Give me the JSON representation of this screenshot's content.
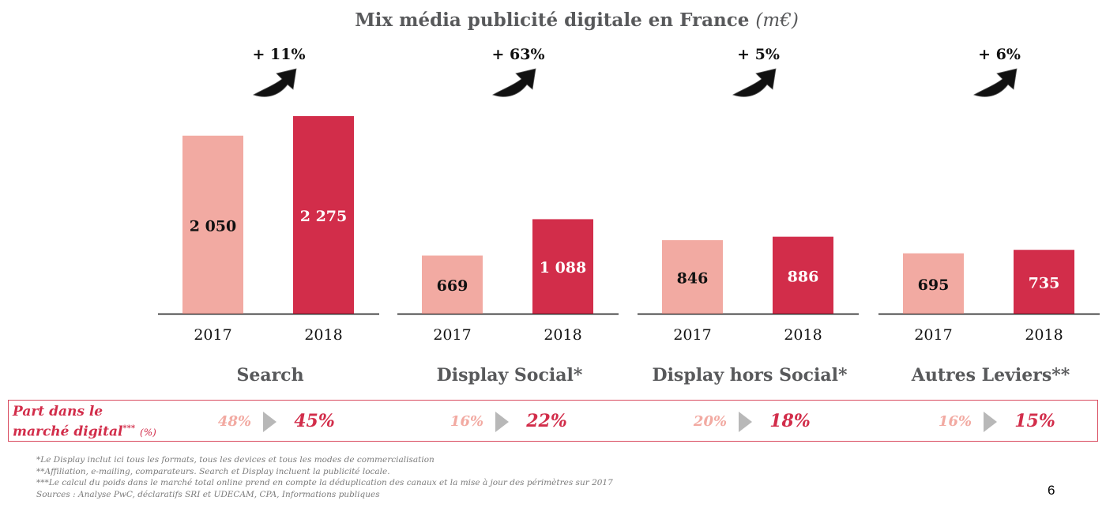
{
  "title": {
    "main": "Mix média publicité digitale en France",
    "unit": "(m€)"
  },
  "colors": {
    "bar_2017": "#f2aaa2",
    "bar_2018": "#d22d4a",
    "title": "#58595b",
    "accent": "#d22d4a",
    "arrow_icon": "curved-up-right-arrow-icon"
  },
  "chart_data": {
    "type": "bar",
    "title": "Mix média publicité digitale en France (m€)",
    "categories": [
      "Search",
      "Display Social*",
      "Display hors Social*",
      "Autres Leviers**"
    ],
    "series": [
      {
        "name": "2017",
        "values": [
          2050,
          669,
          846,
          695
        ],
        "labels": [
          "2 050",
          "669",
          "846",
          "695"
        ]
      },
      {
        "name": "2018",
        "values": [
          2275,
          1088,
          886,
          735
        ],
        "labels": [
          "2 275",
          "1 088",
          "886",
          "735"
        ]
      }
    ],
    "growth": [
      "+ 11%",
      "+ 63%",
      "+ 5%",
      "+ 6%"
    ],
    "xlabel": "",
    "ylabel": "",
    "grid": false
  },
  "market_share": {
    "label_line1": "Part dans le",
    "label_line2": "marché digital",
    "label_stars": "***",
    "label_unit": "(%)",
    "items": [
      {
        "old": "48%",
        "new": "45%"
      },
      {
        "old": "16%",
        "new": "22%"
      },
      {
        "old": "20%",
        "new": "18%"
      },
      {
        "old": "16%",
        "new": "15%"
      }
    ]
  },
  "footnotes": [
    "*Le Display inclut ici tous les formats, tous les devices et tous les modes de commercialisation",
    "**Affiliation, e-mailing, comparateurs. Search et Display incluent la publicité locale.",
    "***Le calcul du poids dans le marché total online prend en compte la déduplication des canaux et la mise à jour des périmètres sur 2017",
    "Sources : Analyse PwC, déclaratifs SRI et UDECAM, CPA, Informations publiques"
  ],
  "page_number": "6"
}
